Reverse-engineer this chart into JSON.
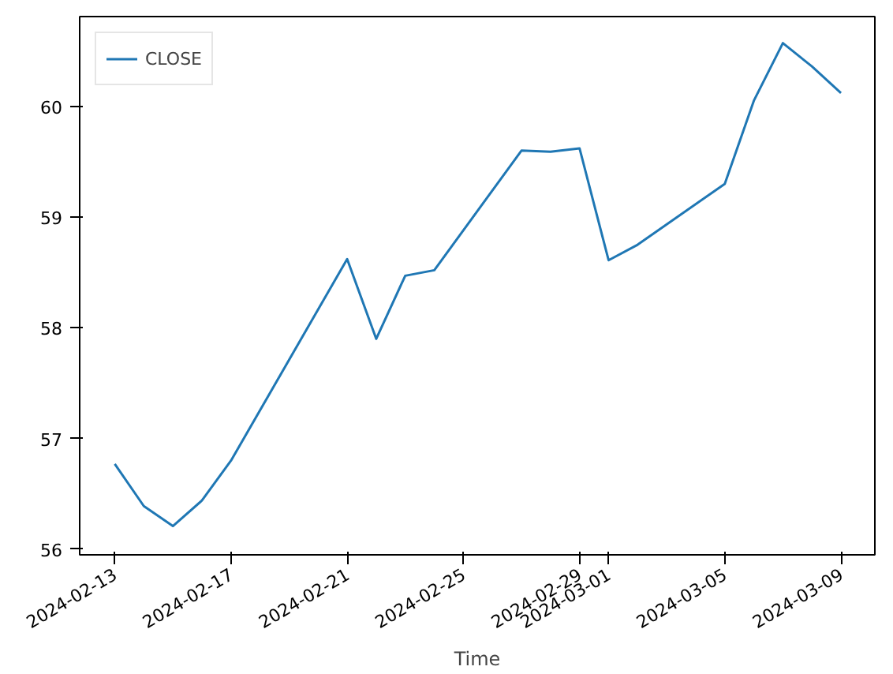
{
  "chart_data": {
    "type": "line",
    "xlabel": "Time",
    "x": [
      "2024-02-13",
      "2024-02-14",
      "2024-02-15",
      "2024-02-16",
      "2024-02-17",
      "2024-02-21",
      "2024-02-22",
      "2024-02-23",
      "2024-02-24",
      "2024-02-27",
      "2024-02-28",
      "2024-02-29",
      "2024-03-01",
      "2024-03-02",
      "2024-03-05",
      "2024-03-06",
      "2024-03-07",
      "2024-03-08",
      "2024-03-09"
    ],
    "series": [
      {
        "name": "CLOSE",
        "color": "#1f77b4",
        "values": [
          56.77,
          56.39,
          56.21,
          56.44,
          56.8,
          58.62,
          57.9,
          58.47,
          58.52,
          59.6,
          59.59,
          59.62,
          58.61,
          58.75,
          59.3,
          60.05,
          60.57,
          60.36,
          60.12
        ]
      }
    ],
    "xlim": [
      "2024-02-11T19:00",
      "2024-03-10T04:00"
    ],
    "xticks": [
      "2024-02-13",
      "2024-02-17",
      "2024-02-21",
      "2024-02-25",
      "2024-02-29",
      "2024-03-01",
      "2024-03-05",
      "2024-03-09"
    ],
    "ylim": [
      55.95,
      60.81
    ],
    "yticks": [
      56,
      57,
      58,
      59,
      60
    ],
    "grid": false,
    "legend": "top left",
    "line_style": "solid"
  }
}
